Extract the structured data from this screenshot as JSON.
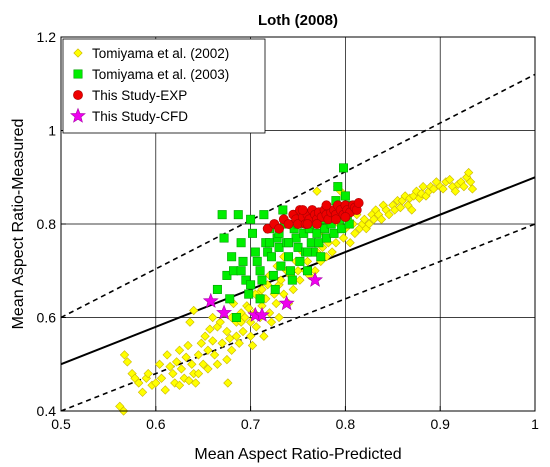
{
  "chart_data": {
    "type": "scatter",
    "title": "Loth (2008)",
    "xlabel": "Mean Aspect Ratio-Predicted",
    "ylabel": "Mean Aspect Ratio-Measured",
    "xlim": [
      0.5,
      1.0
    ],
    "ylim": [
      0.4,
      1.2
    ],
    "xticks": [
      "0.5",
      "0.6",
      "0.7",
      "0.8",
      "0.9",
      "1"
    ],
    "yticks": [
      "0.4",
      "0.6",
      "0.8",
      "1",
      "1.2"
    ],
    "grid": true,
    "legend_position": "top-left",
    "reference_lines": [
      {
        "style": "solid",
        "points": [
          [
            0.5,
            0.5
          ],
          [
            1.0,
            0.9
          ]
        ]
      },
      {
        "style": "dashed",
        "points": [
          [
            0.5,
            0.6
          ],
          [
            1.0,
            1.12
          ]
        ]
      },
      {
        "style": "dashed",
        "points": [
          [
            0.5,
            0.4
          ],
          [
            1.0,
            0.8
          ]
        ]
      }
    ],
    "series": [
      {
        "name": "Tomiyama et al. (2002)",
        "marker": "diamond",
        "color": "#ffff00",
        "edge": "#c8b400",
        "points": [
          [
            0.562,
            0.41
          ],
          [
            0.566,
            0.4
          ],
          [
            0.567,
            0.52
          ],
          [
            0.57,
            0.505
          ],
          [
            0.575,
            0.48
          ],
          [
            0.578,
            0.47
          ],
          [
            0.582,
            0.46
          ],
          [
            0.586,
            0.44
          ],
          [
            0.59,
            0.47
          ],
          [
            0.592,
            0.48
          ],
          [
            0.596,
            0.455
          ],
          [
            0.6,
            0.46
          ],
          [
            0.604,
            0.5
          ],
          [
            0.606,
            0.47
          ],
          [
            0.61,
            0.445
          ],
          [
            0.612,
            0.52
          ],
          [
            0.615,
            0.495
          ],
          [
            0.618,
            0.48
          ],
          [
            0.62,
            0.46
          ],
          [
            0.622,
            0.505
          ],
          [
            0.625,
            0.53
          ],
          [
            0.627,
            0.49
          ],
          [
            0.63,
            0.47
          ],
          [
            0.632,
            0.515
          ],
          [
            0.634,
            0.54
          ],
          [
            0.636,
            0.59
          ],
          [
            0.638,
            0.5
          ],
          [
            0.64,
            0.615
          ],
          [
            0.64,
            0.48
          ],
          [
            0.642,
            0.46
          ],
          [
            0.645,
            0.52
          ],
          [
            0.648,
            0.545
          ],
          [
            0.65,
            0.5
          ],
          [
            0.652,
            0.56
          ],
          [
            0.655,
            0.53
          ],
          [
            0.657,
            0.575
          ],
          [
            0.66,
            0.6
          ],
          [
            0.66,
            0.55
          ],
          [
            0.662,
            0.52
          ],
          [
            0.665,
            0.58
          ],
          [
            0.668,
            0.59
          ],
          [
            0.67,
            0.545
          ],
          [
            0.672,
            0.61
          ],
          [
            0.675,
            0.57
          ],
          [
            0.676,
            0.46
          ],
          [
            0.678,
            0.555
          ],
          [
            0.68,
            0.6
          ],
          [
            0.682,
            0.63
          ],
          [
            0.685,
            0.59
          ],
          [
            0.688,
            0.545
          ],
          [
            0.69,
            0.61
          ],
          [
            0.692,
            0.57
          ],
          [
            0.694,
            0.6
          ],
          [
            0.696,
            0.625
          ],
          [
            0.7,
            0.59
          ],
          [
            0.7,
            0.56
          ],
          [
            0.702,
            0.54
          ],
          [
            0.704,
            0.61
          ],
          [
            0.706,
            0.58
          ],
          [
            0.708,
            0.65
          ],
          [
            0.71,
            0.6
          ],
          [
            0.712,
            0.625
          ],
          [
            0.714,
            0.56
          ],
          [
            0.716,
            0.64
          ],
          [
            0.718,
            0.67
          ],
          [
            0.72,
            0.61
          ],
          [
            0.722,
            0.59
          ],
          [
            0.725,
            0.65
          ],
          [
            0.727,
            0.63
          ],
          [
            0.73,
            0.67
          ],
          [
            0.73,
            0.6
          ],
          [
            0.732,
            0.68
          ],
          [
            0.735,
            0.65
          ],
          [
            0.738,
            0.7
          ],
          [
            0.74,
            0.63
          ],
          [
            0.742,
            0.69
          ],
          [
            0.745,
            0.66
          ],
          [
            0.748,
            0.72
          ],
          [
            0.75,
            0.7
          ],
          [
            0.752,
            0.68
          ],
          [
            0.755,
            0.74
          ],
          [
            0.758,
            0.7
          ],
          [
            0.76,
            0.72
          ],
          [
            0.762,
            0.69
          ],
          [
            0.765,
            0.76
          ],
          [
            0.766,
            0.82
          ],
          [
            0.768,
            0.7
          ],
          [
            0.77,
            0.74
          ],
          [
            0.772,
            0.78
          ],
          [
            0.774,
            0.72
          ],
          [
            0.776,
            0.75
          ],
          [
            0.778,
            0.79
          ],
          [
            0.78,
            0.73
          ],
          [
            0.782,
            0.76
          ],
          [
            0.784,
            0.8
          ],
          [
            0.786,
            0.74
          ],
          [
            0.788,
            0.78
          ],
          [
            0.79,
            0.76
          ],
          [
            0.792,
            0.88
          ],
          [
            0.793,
            0.8
          ],
          [
            0.795,
            0.87
          ],
          [
            0.798,
            0.77
          ],
          [
            0.8,
            0.79
          ],
          [
            0.802,
            0.81
          ],
          [
            0.805,
            0.76
          ],
          [
            0.808,
            0.8
          ],
          [
            0.81,
            0.78
          ],
          [
            0.812,
            0.82
          ],
          [
            0.815,
            0.79
          ],
          [
            0.818,
            0.8
          ],
          [
            0.82,
            0.81
          ],
          [
            0.822,
            0.79
          ],
          [
            0.825,
            0.8
          ],
          [
            0.828,
            0.82
          ],
          [
            0.83,
            0.81
          ],
          [
            0.832,
            0.83
          ],
          [
            0.835,
            0.82
          ],
          [
            0.838,
            0.81
          ],
          [
            0.84,
            0.84
          ],
          [
            0.843,
            0.83
          ],
          [
            0.846,
            0.82
          ],
          [
            0.85,
            0.84
          ],
          [
            0.852,
            0.83
          ],
          [
            0.855,
            0.85
          ],
          [
            0.858,
            0.835
          ],
          [
            0.86,
            0.85
          ],
          [
            0.863,
            0.86
          ],
          [
            0.866,
            0.84
          ],
          [
            0.868,
            0.855
          ],
          [
            0.87,
            0.83
          ],
          [
            0.872,
            0.86
          ],
          [
            0.875,
            0.87
          ],
          [
            0.878,
            0.855
          ],
          [
            0.88,
            0.865
          ],
          [
            0.882,
            0.88
          ],
          [
            0.885,
            0.86
          ],
          [
            0.888,
            0.87
          ],
          [
            0.89,
            0.88
          ],
          [
            0.893,
            0.875
          ],
          [
            0.896,
            0.89
          ],
          [
            0.9,
            0.88
          ],
          [
            0.903,
            0.875
          ],
          [
            0.906,
            0.89
          ],
          [
            0.91,
            0.895
          ],
          [
            0.913,
            0.88
          ],
          [
            0.916,
            0.87
          ],
          [
            0.919,
            0.885
          ],
          [
            0.922,
            0.89
          ],
          [
            0.925,
            0.88
          ],
          [
            0.928,
            0.9
          ],
          [
            0.93,
            0.91
          ],
          [
            0.932,
            0.89
          ],
          [
            0.934,
            0.875
          ],
          [
            0.77,
            0.87
          ],
          [
            0.78,
            0.84
          ],
          [
            0.76,
            0.8
          ],
          [
            0.745,
            0.79
          ],
          [
            0.735,
            0.73
          ],
          [
            0.728,
            0.71
          ],
          [
            0.72,
            0.69
          ],
          [
            0.712,
            0.66
          ],
          [
            0.705,
            0.65
          ],
          [
            0.698,
            0.62
          ],
          [
            0.69,
            0.59
          ],
          [
            0.685,
            0.56
          ],
          [
            0.68,
            0.53
          ],
          [
            0.675,
            0.51
          ],
          [
            0.665,
            0.5
          ],
          [
            0.655,
            0.49
          ],
          [
            0.645,
            0.48
          ],
          [
            0.635,
            0.465
          ],
          [
            0.625,
            0.455
          ]
        ]
      },
      {
        "name": "Tomiyama et al. (2003)",
        "marker": "square",
        "color": "#00ee00",
        "edge": "#00a000",
        "points": [
          [
            0.665,
            0.66
          ],
          [
            0.67,
            0.82
          ],
          [
            0.672,
            0.77
          ],
          [
            0.675,
            0.69
          ],
          [
            0.678,
            0.64
          ],
          [
            0.68,
            0.73
          ],
          [
            0.682,
            0.7
          ],
          [
            0.685,
            0.6
          ],
          [
            0.687,
            0.82
          ],
          [
            0.69,
            0.76
          ],
          [
            0.692,
            0.72
          ],
          [
            0.695,
            0.68
          ],
          [
            0.698,
            0.65
          ],
          [
            0.7,
            0.81
          ],
          [
            0.702,
            0.78
          ],
          [
            0.705,
            0.74
          ],
          [
            0.707,
            0.72
          ],
          [
            0.71,
            0.7
          ],
          [
            0.712,
            0.68
          ],
          [
            0.714,
            0.82
          ],
          [
            0.716,
            0.76
          ],
          [
            0.718,
            0.74
          ],
          [
            0.72,
            0.79
          ],
          [
            0.722,
            0.73
          ],
          [
            0.724,
            0.69
          ],
          [
            0.726,
            0.66
          ],
          [
            0.728,
            0.77
          ],
          [
            0.73,
            0.75
          ],
          [
            0.732,
            0.71
          ],
          [
            0.734,
            0.83
          ],
          [
            0.736,
            0.8
          ],
          [
            0.738,
            0.76
          ],
          [
            0.74,
            0.73
          ],
          [
            0.742,
            0.7
          ],
          [
            0.744,
            0.68
          ],
          [
            0.746,
            0.79
          ],
          [
            0.748,
            0.77
          ],
          [
            0.75,
            0.75
          ],
          [
            0.752,
            0.72
          ],
          [
            0.754,
            0.81
          ],
          [
            0.756,
            0.78
          ],
          [
            0.758,
            0.74
          ],
          [
            0.76,
            0.7
          ],
          [
            0.762,
            0.79
          ],
          [
            0.764,
            0.76
          ],
          [
            0.766,
            0.74
          ],
          [
            0.768,
            0.8
          ],
          [
            0.77,
            0.78
          ],
          [
            0.772,
            0.76
          ],
          [
            0.774,
            0.73
          ],
          [
            0.776,
            0.81
          ],
          [
            0.778,
            0.79
          ],
          [
            0.78,
            0.77
          ],
          [
            0.782,
            0.82
          ],
          [
            0.785,
            0.8
          ],
          [
            0.788,
            0.78
          ],
          [
            0.79,
            0.85
          ],
          [
            0.792,
            0.88
          ],
          [
            0.794,
            0.81
          ],
          [
            0.796,
            0.79
          ],
          [
            0.798,
            0.92
          ],
          [
            0.8,
            0.86
          ],
          [
            0.802,
            0.82
          ],
          [
            0.804,
            0.8
          ],
          [
            0.806,
            0.84
          ],
          [
            0.69,
            0.7
          ],
          [
            0.7,
            0.67
          ],
          [
            0.71,
            0.64
          ],
          [
            0.72,
            0.76
          ],
          [
            0.73,
            0.78
          ],
          [
            0.74,
            0.76
          ],
          [
            0.75,
            0.8
          ],
          [
            0.76,
            0.74
          ]
        ]
      },
      {
        "name": "This Study-EXP",
        "marker": "circle",
        "color": "#ee0000",
        "edge": "#aa0000",
        "points": [
          [
            0.718,
            0.79
          ],
          [
            0.725,
            0.8
          ],
          [
            0.73,
            0.79
          ],
          [
            0.735,
            0.81
          ],
          [
            0.74,
            0.8
          ],
          [
            0.745,
            0.82
          ],
          [
            0.748,
            0.81
          ],
          [
            0.75,
            0.8
          ],
          [
            0.752,
            0.83
          ],
          [
            0.755,
            0.815
          ],
          [
            0.758,
            0.8
          ],
          [
            0.76,
            0.82
          ],
          [
            0.762,
            0.81
          ],
          [
            0.765,
            0.83
          ],
          [
            0.768,
            0.82
          ],
          [
            0.77,
            0.81
          ],
          [
            0.772,
            0.825
          ],
          [
            0.775,
            0.815
          ],
          [
            0.778,
            0.83
          ],
          [
            0.78,
            0.82
          ],
          [
            0.782,
            0.81
          ],
          [
            0.785,
            0.825
          ],
          [
            0.788,
            0.83
          ],
          [
            0.79,
            0.82
          ],
          [
            0.792,
            0.84
          ],
          [
            0.795,
            0.83
          ],
          [
            0.798,
            0.82
          ],
          [
            0.8,
            0.84
          ],
          [
            0.802,
            0.83
          ],
          [
            0.805,
            0.825
          ],
          [
            0.808,
            0.84
          ],
          [
            0.81,
            0.835
          ],
          [
            0.812,
            0.83
          ],
          [
            0.814,
            0.845
          ],
          [
            0.79,
            0.81
          ],
          [
            0.77,
            0.8
          ],
          [
            0.76,
            0.8
          ],
          [
            0.8,
            0.815
          ],
          [
            0.78,
            0.84
          ],
          [
            0.755,
            0.83
          ]
        ]
      },
      {
        "name": "This Study-CFD",
        "marker": "star",
        "color": "#ee00ee",
        "edge": "#aa00aa",
        "points": [
          [
            0.658,
            0.635
          ],
          [
            0.672,
            0.61
          ],
          [
            0.705,
            0.605
          ],
          [
            0.712,
            0.605
          ],
          [
            0.738,
            0.63
          ],
          [
            0.768,
            0.68
          ]
        ]
      }
    ]
  }
}
